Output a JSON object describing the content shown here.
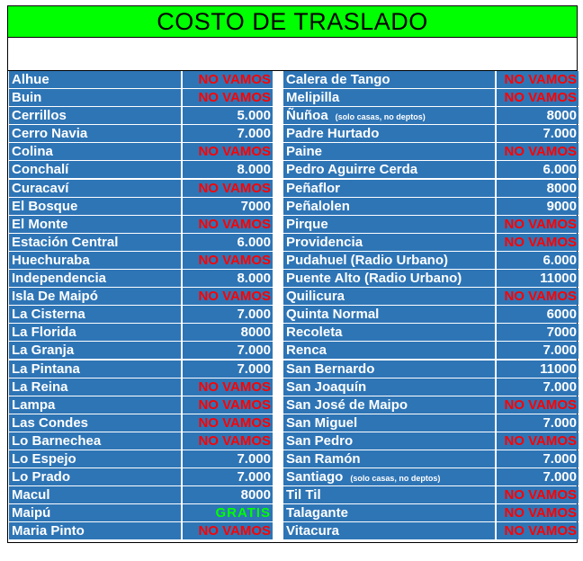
{
  "title": "COSTO DE TRASLADO",
  "colors": {
    "header_bg": "#00ff00",
    "cell_bg": "#2e75b6",
    "no_vamos": "#ff0000",
    "gratis": "#00ff00"
  },
  "left": [
    {
      "name": "Alhue",
      "price": "NO VAMOS"
    },
    {
      "name": "Buin",
      "price": "NO VAMOS"
    },
    {
      "name": "Cerrillos",
      "price": "5.000"
    },
    {
      "name": "Cerro Navia",
      "price": "7.000"
    },
    {
      "name": "Colina",
      "price": "NO VAMOS"
    },
    {
      "name": "Conchalí",
      "price": "8.000"
    },
    {
      "name": "Curacaví",
      "price": "NO VAMOS"
    },
    {
      "name": "El Bosque",
      "price": "7000"
    },
    {
      "name": "El Monte",
      "price": "NO VAMOS"
    },
    {
      "name": "Estación Central",
      "price": "6.000"
    },
    {
      "name": "Huechuraba",
      "price": "NO VAMOS"
    },
    {
      "name": "Independencia",
      "price": "8.000"
    },
    {
      "name": "Isla De Maipó",
      "price": "NO VAMOS"
    },
    {
      "name": "La Cisterna",
      "price": "7.000"
    },
    {
      "name": "La Florida",
      "price": "8000"
    },
    {
      "name": "La Granja",
      "price": "7.000"
    },
    {
      "name": "La Pintana",
      "price": "7.000"
    },
    {
      "name": "La Reina",
      "price": "NO VAMOS"
    },
    {
      "name": "Lampa",
      "price": "NO VAMOS"
    },
    {
      "name": "Las Condes",
      "price": "NO VAMOS"
    },
    {
      "name": "Lo Barnechea",
      "price": "NO VAMOS"
    },
    {
      "name": "Lo Espejo",
      "price": "7.000"
    },
    {
      "name": "Lo Prado",
      "price": "7.000"
    },
    {
      "name": "Macul",
      "price": "8000"
    },
    {
      "name": "Maipú",
      "price": "GRATIS"
    },
    {
      "name": "Maria Pinto",
      "price": "NO VAMOS"
    }
  ],
  "right": [
    {
      "name": "Calera de Tango",
      "price": "NO VAMOS"
    },
    {
      "name": "Melipilla",
      "price": "NO VAMOS"
    },
    {
      "name": "Ñuñoa",
      "note": "(solo casas, no deptos)",
      "price": "8000"
    },
    {
      "name": "Padre Hurtado",
      "price": "7.000"
    },
    {
      "name": "Paine",
      "price": "NO VAMOS"
    },
    {
      "name": "Pedro Aguirre Cerda",
      "price": "6.000"
    },
    {
      "name": "Peñaflor",
      "price": "8000"
    },
    {
      "name": "Peñalolen",
      "price": "9000"
    },
    {
      "name": "Pirque",
      "price": "NO VAMOS"
    },
    {
      "name": "Providencia",
      "price": "NO VAMOS"
    },
    {
      "name": "Pudahuel (Radio Urbano)",
      "price": "6.000"
    },
    {
      "name": "Puente Alto (Radio Urbano)",
      "price": "11000"
    },
    {
      "name": "Quilicura",
      "price": "NO VAMOS"
    },
    {
      "name": "Quinta Normal",
      "price": "6000"
    },
    {
      "name": "Recoleta",
      "price": "7000"
    },
    {
      "name": "Renca",
      "price": "7.000"
    },
    {
      "name": "San Bernardo",
      "price": "11000"
    },
    {
      "name": "San Joaquín",
      "price": "7.000"
    },
    {
      "name": "San José de Maipo",
      "price": "NO VAMOS"
    },
    {
      "name": "San Miguel",
      "price": "7.000"
    },
    {
      "name": "San Pedro",
      "price": "NO VAMOS"
    },
    {
      "name": "San Ramón",
      "price": "7.000"
    },
    {
      "name": "Santiago",
      "note": "(solo casas, no deptos)",
      "price": "7.000"
    },
    {
      "name": "Til Til",
      "price": "NO VAMOS"
    },
    {
      "name": "Talagante",
      "price": "NO VAMOS"
    },
    {
      "name": "Vitacura",
      "price": "NO VAMOS"
    }
  ]
}
